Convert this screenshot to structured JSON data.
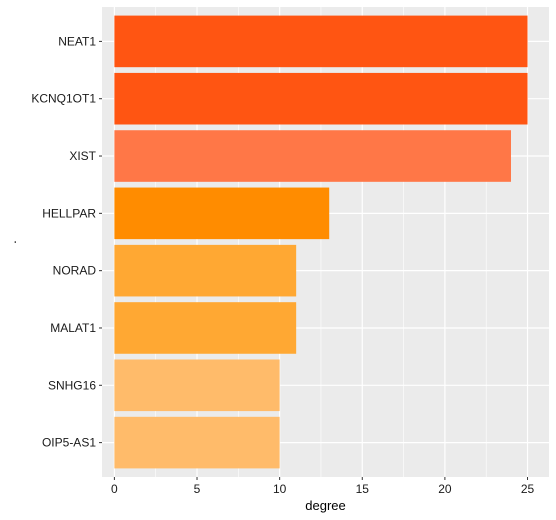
{
  "chart_data": {
    "type": "bar",
    "orientation": "horizontal",
    "categories": [
      "NEAT1",
      "KCNQ1OT1",
      "XIST",
      "HELLPAR",
      "NORAD",
      "MALAT1",
      "SNHG16",
      "OIP5-AS1"
    ],
    "values": [
      25,
      25,
      24,
      13,
      11,
      11,
      10,
      10
    ],
    "bar_colors": [
      "#FF5512",
      "#FF5512",
      "#FF7747",
      "#FF8C00",
      "#FFA833",
      "#FFA833",
      "#FFBB6A",
      "#FFBB6A"
    ],
    "xlabel": "degree",
    "ylabel": ".",
    "xlim": [
      -0.75,
      26.3
    ],
    "xticks": [
      0,
      5,
      10,
      15,
      20,
      25
    ],
    "grid": true,
    "panel_background": "#EBEBEB",
    "grid_color": "#FFFFFF"
  }
}
